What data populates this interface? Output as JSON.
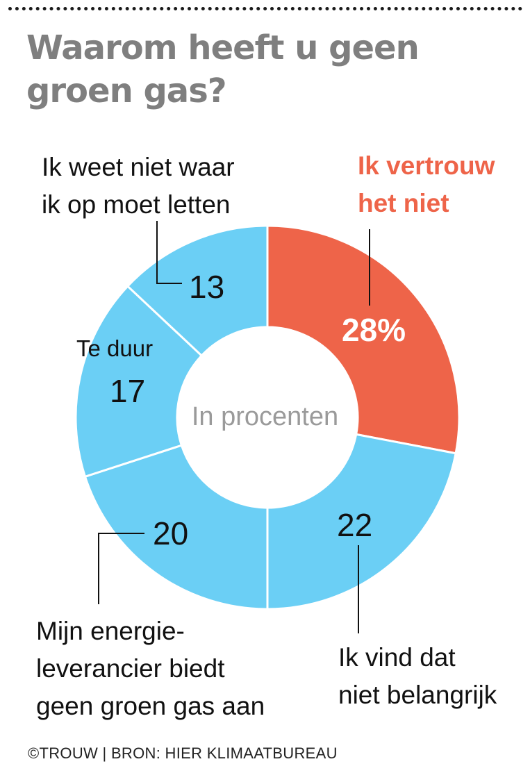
{
  "title": "Waarom heeft u geen groen gas?",
  "center_label": "In procenten",
  "source": "©TROUW | BRON: HIER KLIMAATBUREAU",
  "colors": {
    "highlight": "#ee6449",
    "segment": "#6bcff5",
    "divider": "#ffffff",
    "leader": "#111111",
    "title": "#7f7f7f"
  },
  "chart_data": {
    "type": "pie",
    "variant": "donut",
    "title": "Waarom heeft u geen groen gas?",
    "unit_label": "In procenten",
    "slices": [
      {
        "label_lines": [
          "Ik vertrouw",
          "het niet"
        ],
        "value": 28,
        "value_text": "28%",
        "highlight": true
      },
      {
        "label_lines": [
          "Ik vind dat",
          "niet belangrijk"
        ],
        "value": 22,
        "value_text": "22",
        "highlight": false
      },
      {
        "label_lines": [
          "Mijn energie-",
          "leverancier biedt",
          "geen groen gas aan"
        ],
        "value": 20,
        "value_text": "20",
        "highlight": false
      },
      {
        "label_lines": [
          "Te duur"
        ],
        "value": 17,
        "value_text": "17",
        "highlight": false
      },
      {
        "label_lines": [
          "Ik weet niet waar",
          "ik op moet letten"
        ],
        "value": 13,
        "value_text": "13",
        "highlight": false
      }
    ]
  }
}
